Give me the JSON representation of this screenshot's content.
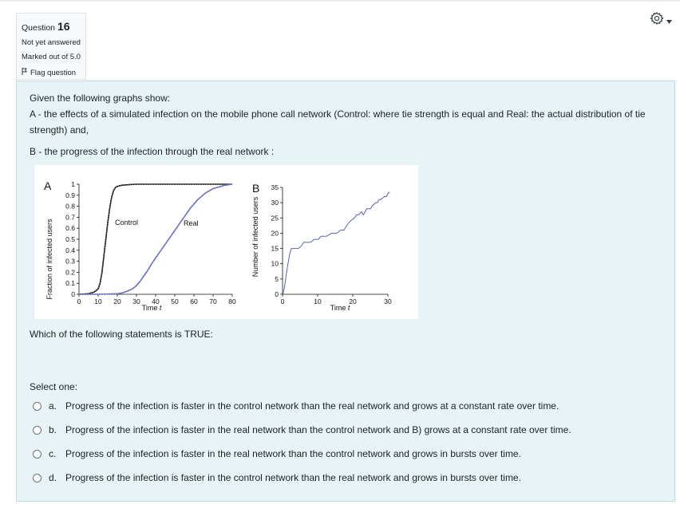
{
  "info": {
    "question_prefix": "Question",
    "question_number": "16",
    "status": "Not yet answered",
    "marks": "Marked out of 5.0",
    "flag_label": "Flag question"
  },
  "question": {
    "intro": "Given the following graphs show:",
    "item_a": "A - the effects of a simulated infection on the mobile phone call network (Control: where tie strength is equal and Real: the actual distribution of tie strength) and,",
    "item_b": "B - the progress of the infection through the real network :",
    "prompt": "Which of the following statements is TRUE:",
    "select_label": "Select one:"
  },
  "answers": [
    {
      "letter": "a.",
      "text": "Progress of the infection is faster in the control network than the real network and grows at a constant rate over time."
    },
    {
      "letter": "b.",
      "text": "Progress of the infection is faster in the real network than the control network and B) grows at a constant rate over time."
    },
    {
      "letter": "c.",
      "text": "Progress of the infection is faster in the real network than the control network and grows in bursts over time."
    },
    {
      "letter": "d.",
      "text": "Progress of the infection is faster in the control network than the real network and grows in bursts over time."
    }
  ],
  "chart_data": [
    {
      "type": "line",
      "panel": "A",
      "xlabel": "Time t",
      "ylabel": "Fraction of infected users",
      "xlim": [
        0,
        80
      ],
      "ylim": [
        0,
        1
      ],
      "x_ticks": [
        "0",
        "10",
        "20",
        "30",
        "40",
        "50",
        "60",
        "70",
        "80"
      ],
      "y_ticks": [
        "0",
        "0.1",
        "0.2",
        "0.3",
        "0.4",
        "0.5",
        "0.6",
        "0.7",
        "0.8",
        "0.9",
        "1"
      ],
      "series": [
        {
          "name": "Control",
          "color": "#111111",
          "style": "dotted",
          "x": [
            0,
            5,
            8,
            10,
            11,
            12,
            13,
            14,
            15,
            16,
            17,
            18,
            19,
            20,
            22,
            25,
            30,
            40,
            60,
            80
          ],
          "y": [
            0,
            0.005,
            0.02,
            0.05,
            0.1,
            0.2,
            0.35,
            0.5,
            0.65,
            0.78,
            0.88,
            0.94,
            0.97,
            0.98,
            0.99,
            0.995,
            1.0,
            1.0,
            1.0,
            1.0
          ]
        },
        {
          "name": "Real",
          "color": "#5b63b4",
          "style": "dotted",
          "x": [
            0,
            10,
            20,
            22,
            24,
            26,
            28,
            30,
            32,
            34,
            36,
            38,
            40,
            42,
            44,
            46,
            48,
            50,
            52,
            54,
            56,
            58,
            60,
            62,
            64,
            66,
            68,
            70,
            72,
            74,
            76,
            78,
            80
          ],
          "y": [
            0,
            0,
            0.005,
            0.01,
            0.02,
            0.035,
            0.05,
            0.08,
            0.12,
            0.17,
            0.22,
            0.28,
            0.33,
            0.38,
            0.43,
            0.48,
            0.53,
            0.58,
            0.63,
            0.68,
            0.73,
            0.78,
            0.82,
            0.86,
            0.89,
            0.92,
            0.94,
            0.96,
            0.97,
            0.98,
            0.99,
            0.995,
            1.0
          ]
        }
      ]
    },
    {
      "type": "line",
      "panel": "B",
      "xlabel": "Time t",
      "ylabel": "Number of infected users",
      "xlim": [
        0,
        30
      ],
      "ylim": [
        0,
        35
      ],
      "x_ticks": [
        "0",
        "10",
        "20",
        "30"
      ],
      "y_ticks": [
        "0",
        "5",
        "10",
        "15",
        "20",
        "25",
        "30",
        "35"
      ],
      "series": [
        {
          "color": "#5b63b4",
          "x": [
            0.1,
            0.3,
            0.5,
            0.8,
            1.0,
            1.4,
            2.0,
            2.5,
            3.2,
            4.5,
            5.5,
            6.0,
            8.0,
            9.0,
            10.2,
            11.0,
            12.5,
            14.0,
            15.5,
            16.5,
            17.5,
            18.0,
            18.6,
            19.3,
            20.5,
            21.0,
            21.6,
            22.5,
            23.0,
            23.5,
            24.0,
            24.5,
            25.0,
            25.6,
            26.5,
            27.0,
            27.5,
            28.0,
            29.0,
            29.6,
            30.0,
            30.5
          ],
          "y": [
            0,
            1,
            2,
            4,
            6,
            9,
            13,
            15,
            15,
            15,
            16,
            17,
            17,
            18,
            18,
            19,
            19,
            20,
            20,
            21,
            21,
            22,
            23,
            24,
            25,
            26,
            26,
            27,
            26,
            27,
            28,
            28,
            28,
            29,
            30,
            30,
            31,
            31,
            32,
            32,
            33,
            33.5
          ]
        }
      ]
    }
  ]
}
